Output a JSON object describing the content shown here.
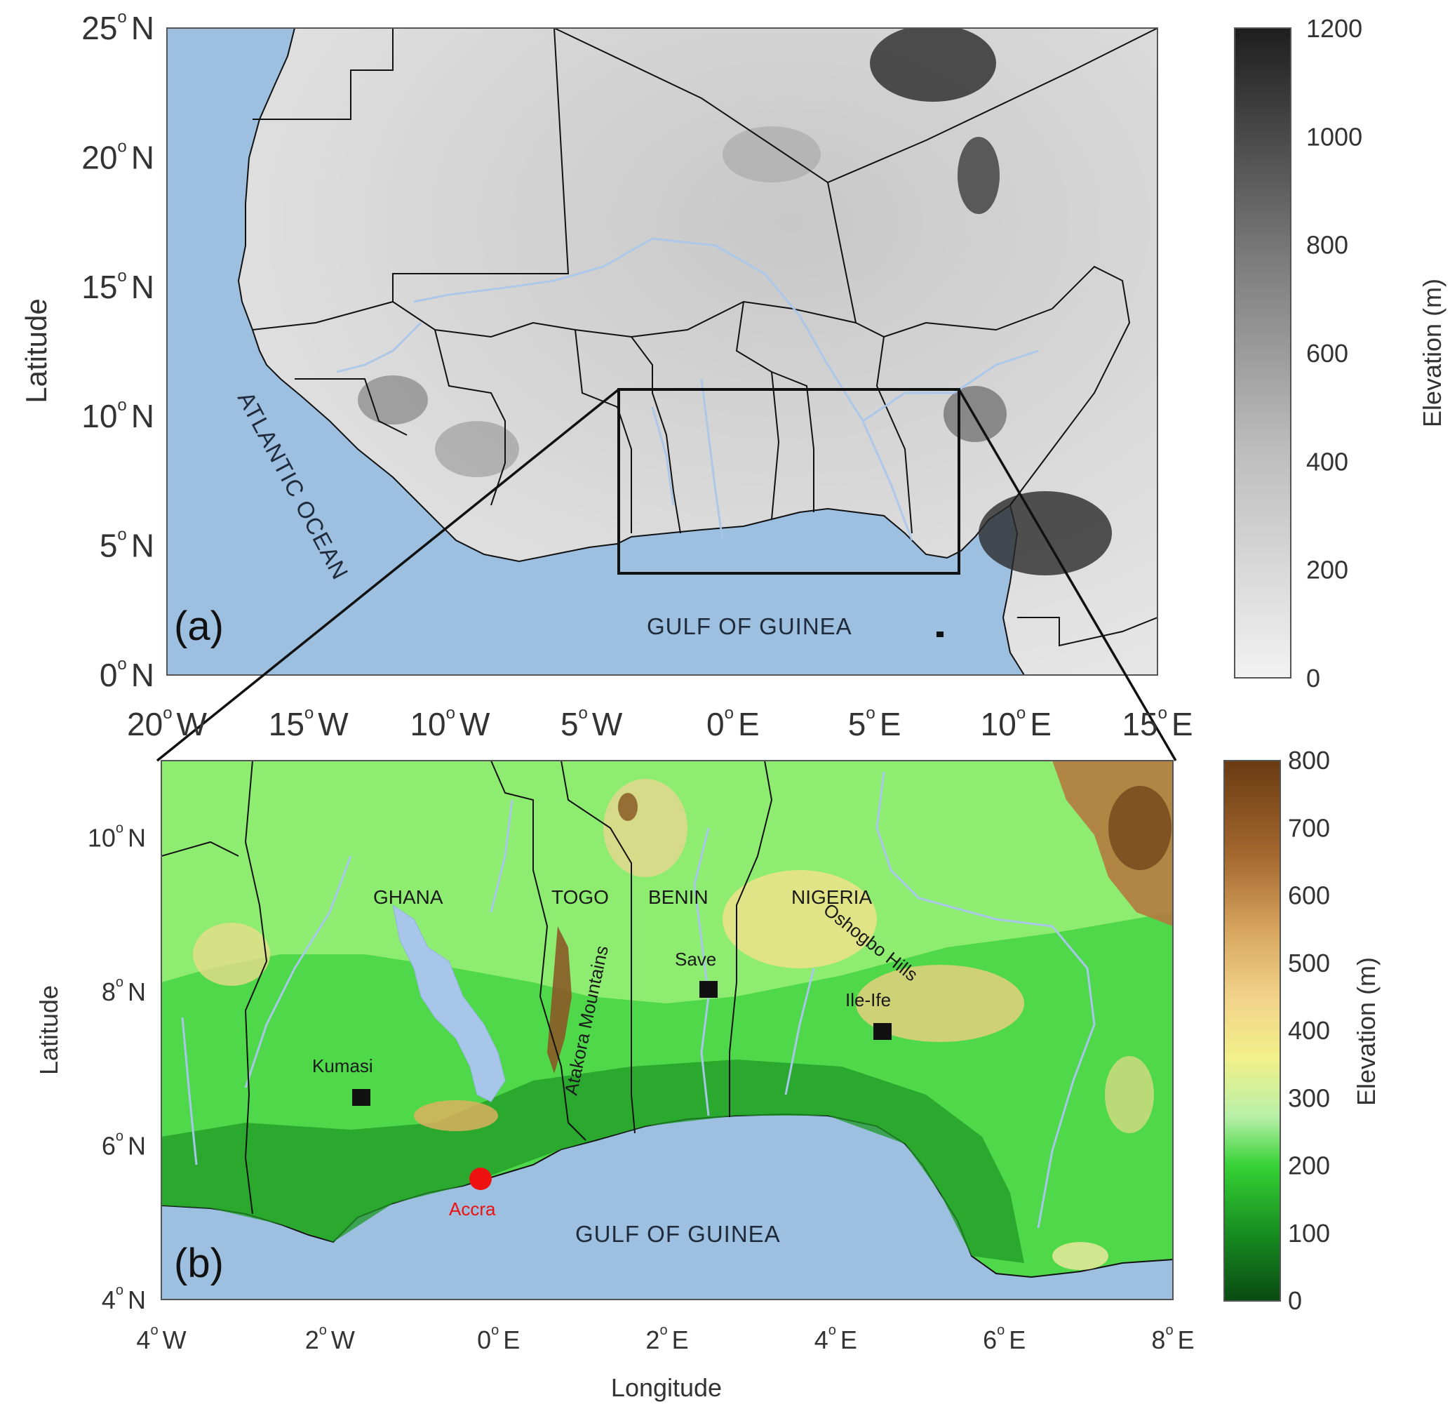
{
  "panel_a": {
    "label": "(a)",
    "ylabel": "Latitude",
    "y_ticks": [
      {
        "value": 0,
        "label": "0",
        "hemi": "N"
      },
      {
        "value": 5,
        "label": "5",
        "hemi": "N"
      },
      {
        "value": 10,
        "label": "10",
        "hemi": "N"
      },
      {
        "value": 15,
        "label": "15",
        "hemi": "N"
      },
      {
        "value": 20,
        "label": "20",
        "hemi": "N"
      },
      {
        "value": 25,
        "label": "25",
        "hemi": "N"
      }
    ],
    "x_ticks": [
      {
        "value": -20,
        "label": "20",
        "hemi": "W"
      },
      {
        "value": -15,
        "label": "15",
        "hemi": "W"
      },
      {
        "value": -10,
        "label": "10",
        "hemi": "W"
      },
      {
        "value": -5,
        "label": "5",
        "hemi": "W"
      },
      {
        "value": 0,
        "label": "0",
        "hemi": "E"
      },
      {
        "value": 5,
        "label": "5",
        "hemi": "E"
      },
      {
        "value": 10,
        "label": "10",
        "hemi": "E"
      },
      {
        "value": 15,
        "label": "15",
        "hemi": "E"
      }
    ],
    "labels": {
      "ocean": "ATLANTIC OCEAN",
      "gulf": "GULF OF GUINEA"
    },
    "colorbar": {
      "title": "Elevation (m)",
      "ticks": [
        "0",
        "200",
        "400",
        "600",
        "800",
        "1000",
        "1200"
      ]
    }
  },
  "panel_b": {
    "label": "(b)",
    "xlabel": "Longitude",
    "ylabel": "Latitude",
    "y_ticks": [
      {
        "value": 4,
        "label": "4",
        "hemi": "N"
      },
      {
        "value": 6,
        "label": "6",
        "hemi": "N"
      },
      {
        "value": 8,
        "label": "8",
        "hemi": "N"
      },
      {
        "value": 10,
        "label": "10",
        "hemi": "N"
      }
    ],
    "x_ticks": [
      {
        "value": -4,
        "label": "4",
        "hemi": "W"
      },
      {
        "value": -2,
        "label": "2",
        "hemi": "W"
      },
      {
        "value": 0,
        "label": "0",
        "hemi": "E"
      },
      {
        "value": 2,
        "label": "2",
        "hemi": "E"
      },
      {
        "value": 4,
        "label": "4",
        "hemi": "E"
      },
      {
        "value": 6,
        "label": "6",
        "hemi": "E"
      },
      {
        "value": 8,
        "label": "8",
        "hemi": "E"
      }
    ],
    "countries": {
      "ghana": "GHANA",
      "togo": "TOGO",
      "benin": "BENIN",
      "nigeria": "NIGERIA"
    },
    "features": {
      "atakora": "Atakora Mountains",
      "oshogbo": "Oshogbo Hills",
      "gulf": "GULF OF GUINEA"
    },
    "stations": {
      "kumasi": "Kumasi",
      "save": "Save",
      "ileife": "Ile-Ife",
      "accra": "Accra"
    },
    "colorbar": {
      "title": "Elevation (m)",
      "ticks": [
        "0",
        "100",
        "200",
        "300",
        "400",
        "500",
        "600",
        "700",
        "800"
      ]
    }
  },
  "colors": {
    "sea": "#9dbfe0",
    "river": "#a8c6ea",
    "accra_marker": "#ee1111",
    "station_marker": "#111111"
  }
}
